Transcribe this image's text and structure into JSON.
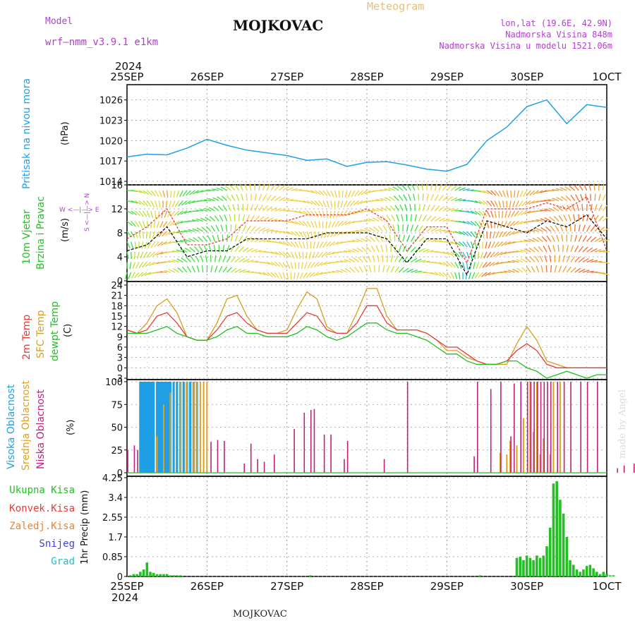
{
  "header": {
    "model_label": "Model",
    "model_name": "wrf—nmm_v3.9.1 e1km",
    "title": "MOJKOVAC",
    "meteogram_label": "Meteogram",
    "lonlat": "lon,lat (19.6E, 42.9N)",
    "altitude": "Nadmorska Visina 848m",
    "model_altitude": "Nadmorska Visina u modelu 1521.06m",
    "year_top": "2024",
    "year_bottom": "2024",
    "footer": "MOJKOVAC",
    "watermark": "made by Angel"
  },
  "colors": {
    "pressure": "#1ea0e6",
    "temp2m": "#e83a3a",
    "sfc": "#d4a020",
    "dewpt": "#20c020",
    "low_cloud": "#c0207a",
    "mid_cloud": "#e0a020",
    "high_cloud": "#1e9fe6",
    "precip": "#22c022",
    "title_violet": "#b040d0",
    "meteogram_orange": "#e8c070"
  },
  "panels": {
    "pressure": {
      "label": "Pritisak na nivou mora",
      "unit": "(hPa)"
    },
    "wind": {
      "label1": "10m Vjetar",
      "label2": "Brzina i Pravac",
      "unit": "(m/s)",
      "compass": "W <—|—> E",
      "compass2": "S <—|—> N"
    },
    "temp": {
      "label1": "2m Temp",
      "label2": "SFC Temp",
      "label3": "dewpt Temp",
      "unit": "(C)"
    },
    "cloud": {
      "label1": "Visoka Oblacnost",
      "label2": "Srednja Oblacnost",
      "label3": "Niska Oblacnost",
      "unit": "(%)"
    },
    "precip": {
      "unit": "1hr Precip (mm)",
      "legend": [
        "Ukupna Kisa",
        "Konvek.Kisa",
        "Zaledj.Kisa",
        "Snijeg",
        "Grad"
      ]
    }
  },
  "chart_data": {
    "type": "line",
    "days": [
      "25SEP",
      "26SEP",
      "27SEP",
      "28SEP",
      "29SEP",
      "30SEP",
      "1OCT"
    ],
    "pressure": {
      "ylim": [
        1014,
        1027
      ],
      "ticks": [
        1014,
        1017,
        1020,
        1023,
        1026
      ],
      "hours": [
        0,
        6,
        12,
        18,
        24,
        30,
        36,
        42,
        48,
        54,
        60,
        66,
        72,
        78,
        84,
        90,
        96,
        102,
        108,
        114,
        120,
        126,
        132,
        138,
        144
      ],
      "values": [
        1017.6,
        1018.0,
        1017.9,
        1018.9,
        1020.2,
        1019.3,
        1018.6,
        1018.2,
        1017.8,
        1017.1,
        1017.3,
        1016.2,
        1016.8,
        1016.9,
        1016.4,
        1015.8,
        1015.5,
        1016.5,
        1020.0,
        1022.0,
        1025.0,
        1026.0,
        1022.5,
        1025.3,
        1024.9
      ]
    },
    "wind": {
      "ylim": [
        0,
        16
      ],
      "ticks": [
        0,
        4,
        8,
        12,
        16
      ],
      "hours": [
        0,
        6,
        12,
        18,
        24,
        30,
        36,
        42,
        48,
        54,
        60,
        66,
        72,
        78,
        84,
        90,
        96,
        102,
        108,
        114,
        120,
        126,
        132,
        138,
        144
      ],
      "speed": [
        5,
        6,
        9,
        4,
        5,
        5,
        7,
        7,
        7,
        7,
        8,
        8,
        8,
        7,
        3,
        7,
        7,
        1,
        10,
        9,
        8,
        10,
        9,
        11,
        7
      ],
      "gust": [
        7,
        9,
        12,
        6,
        6,
        7,
        10,
        10,
        10,
        11,
        11,
        11,
        12,
        10,
        5,
        9,
        9,
        3,
        12,
        12,
        12,
        13,
        12,
        14,
        5
      ]
    },
    "temperature": {
      "ylim": [
        -3,
        24
      ],
      "ticks": [
        -3,
        0,
        3,
        6,
        9,
        12,
        15,
        18,
        21,
        24
      ],
      "hours": [
        0,
        3,
        6,
        9,
        12,
        15,
        18,
        21,
        24,
        27,
        30,
        33,
        36,
        39,
        42,
        45,
        48,
        51,
        54,
        57,
        60,
        63,
        66,
        69,
        72,
        75,
        78,
        81,
        84,
        87,
        90,
        93,
        96,
        99,
        102,
        105,
        108,
        111,
        114,
        117,
        120,
        123,
        126,
        129,
        132,
        135,
        138,
        141,
        144
      ],
      "t2m": [
        11,
        10,
        11,
        15,
        16,
        13,
        9,
        8,
        8,
        11,
        15,
        16,
        13,
        11,
        10,
        10,
        10,
        13,
        16,
        15,
        11,
        10,
        10,
        13,
        18,
        18,
        13,
        11,
        11,
        11,
        10,
        8,
        6,
        6,
        4,
        2,
        1,
        1,
        2,
        5,
        7,
        5,
        1,
        0,
        0,
        0,
        0,
        0,
        0
      ],
      "sfc": [
        11,
        10,
        13,
        18,
        20,
        16,
        9,
        8,
        8,
        13,
        20,
        21,
        15,
        11,
        10,
        10,
        11,
        17,
        22,
        20,
        12,
        10,
        10,
        16,
        23,
        23,
        15,
        11,
        11,
        11,
        10,
        8,
        5,
        5,
        3,
        2,
        1,
        1,
        1,
        7,
        12,
        8,
        2,
        1,
        0,
        0,
        0,
        0,
        0
      ],
      "dewpt": [
        10,
        10,
        10,
        11,
        12,
        10,
        9,
        8,
        8,
        9,
        11,
        12,
        10,
        10,
        9,
        9,
        9,
        10,
        12,
        11,
        9,
        8,
        9,
        11,
        13,
        13,
        11,
        10,
        10,
        9,
        8,
        6,
        4,
        4,
        2,
        1,
        1,
        1,
        2,
        2,
        0,
        -1,
        -3,
        -2,
        -1,
        -2,
        -3,
        -2,
        -2
      ]
    },
    "cloud": {
      "ylim": [
        0,
        100
      ],
      "ticks": [
        0,
        25,
        50,
        75,
        100
      ],
      "high_hours": [
        4,
        4.5,
        5,
        5.5,
        6,
        6.5,
        7,
        7.5,
        8,
        9,
        9.5,
        10,
        10.5,
        11,
        11.5,
        12,
        12.5,
        13,
        14,
        15,
        16,
        17,
        18,
        19,
        20,
        21
      ],
      "mid_hours": [
        9,
        11,
        13,
        16,
        18,
        20,
        21,
        22,
        23,
        24,
        112,
        114,
        115,
        117,
        119,
        121,
        122,
        123,
        124,
        125,
        127,
        128,
        130
      ],
      "mid_values": [
        40,
        75,
        88,
        100,
        100,
        100,
        100,
        100,
        100,
        100,
        22,
        20,
        35,
        30,
        60,
        100,
        45,
        100,
        20,
        38,
        20,
        100,
        100
      ],
      "low_hours": [
        0,
        2,
        3,
        25,
        27,
        29,
        35,
        37,
        39,
        41,
        44,
        50,
        53,
        55,
        56,
        59,
        61,
        65,
        66,
        77,
        84,
        104,
        105,
        109,
        112,
        115,
        116,
        118,
        120,
        121,
        122,
        123,
        124,
        125,
        126,
        127,
        129,
        131,
        133,
        136,
        138,
        141,
        147,
        149,
        152,
        159,
        161
      ],
      "low_values": [
        25,
        30,
        25,
        34,
        36,
        35,
        10,
        32,
        15,
        12,
        20,
        48,
        66,
        69,
        70,
        42,
        42,
        15,
        35,
        15,
        100,
        18,
        100,
        92,
        100,
        40,
        98,
        100,
        100,
        100,
        100,
        100,
        100,
        100,
        100,
        100,
        100,
        100,
        100,
        100,
        100,
        100,
        5,
        8,
        10,
        4,
        26
      ]
    },
    "precip": {
      "ylim": [
        0,
        4.25
      ],
      "ticks": [
        0,
        0.85,
        1.7,
        2.55,
        3.4,
        4.25
      ],
      "hours": [
        1,
        2,
        3,
        4,
        5,
        6,
        7,
        8,
        9,
        10,
        11,
        12,
        13,
        14,
        15,
        16,
        55,
        106,
        117,
        118,
        119,
        120,
        121,
        122,
        123,
        124,
        125,
        126,
        127,
        128,
        129,
        130,
        131,
        132,
        133,
        134,
        135,
        136,
        137,
        138,
        139,
        140,
        141,
        142,
        143,
        144,
        145,
        146
      ],
      "values": [
        0.05,
        0.1,
        0.1,
        0.2,
        0.3,
        0.6,
        0.2,
        0.15,
        0.1,
        0.1,
        0.1,
        0.1,
        0.05,
        0.05,
        0.05,
        0.05,
        0.05,
        0.05,
        0.8,
        0.85,
        0.7,
        0.9,
        0.8,
        0.7,
        0.9,
        0.8,
        0.9,
        1.3,
        2.1,
        4.0,
        4.1,
        3.3,
        2.7,
        1.7,
        0.7,
        0.5,
        0.3,
        0.2,
        0.3,
        0.45,
        0.5,
        0.35,
        0.2,
        0.1,
        0.2,
        0.1,
        0.05,
        0.05
      ]
    }
  }
}
